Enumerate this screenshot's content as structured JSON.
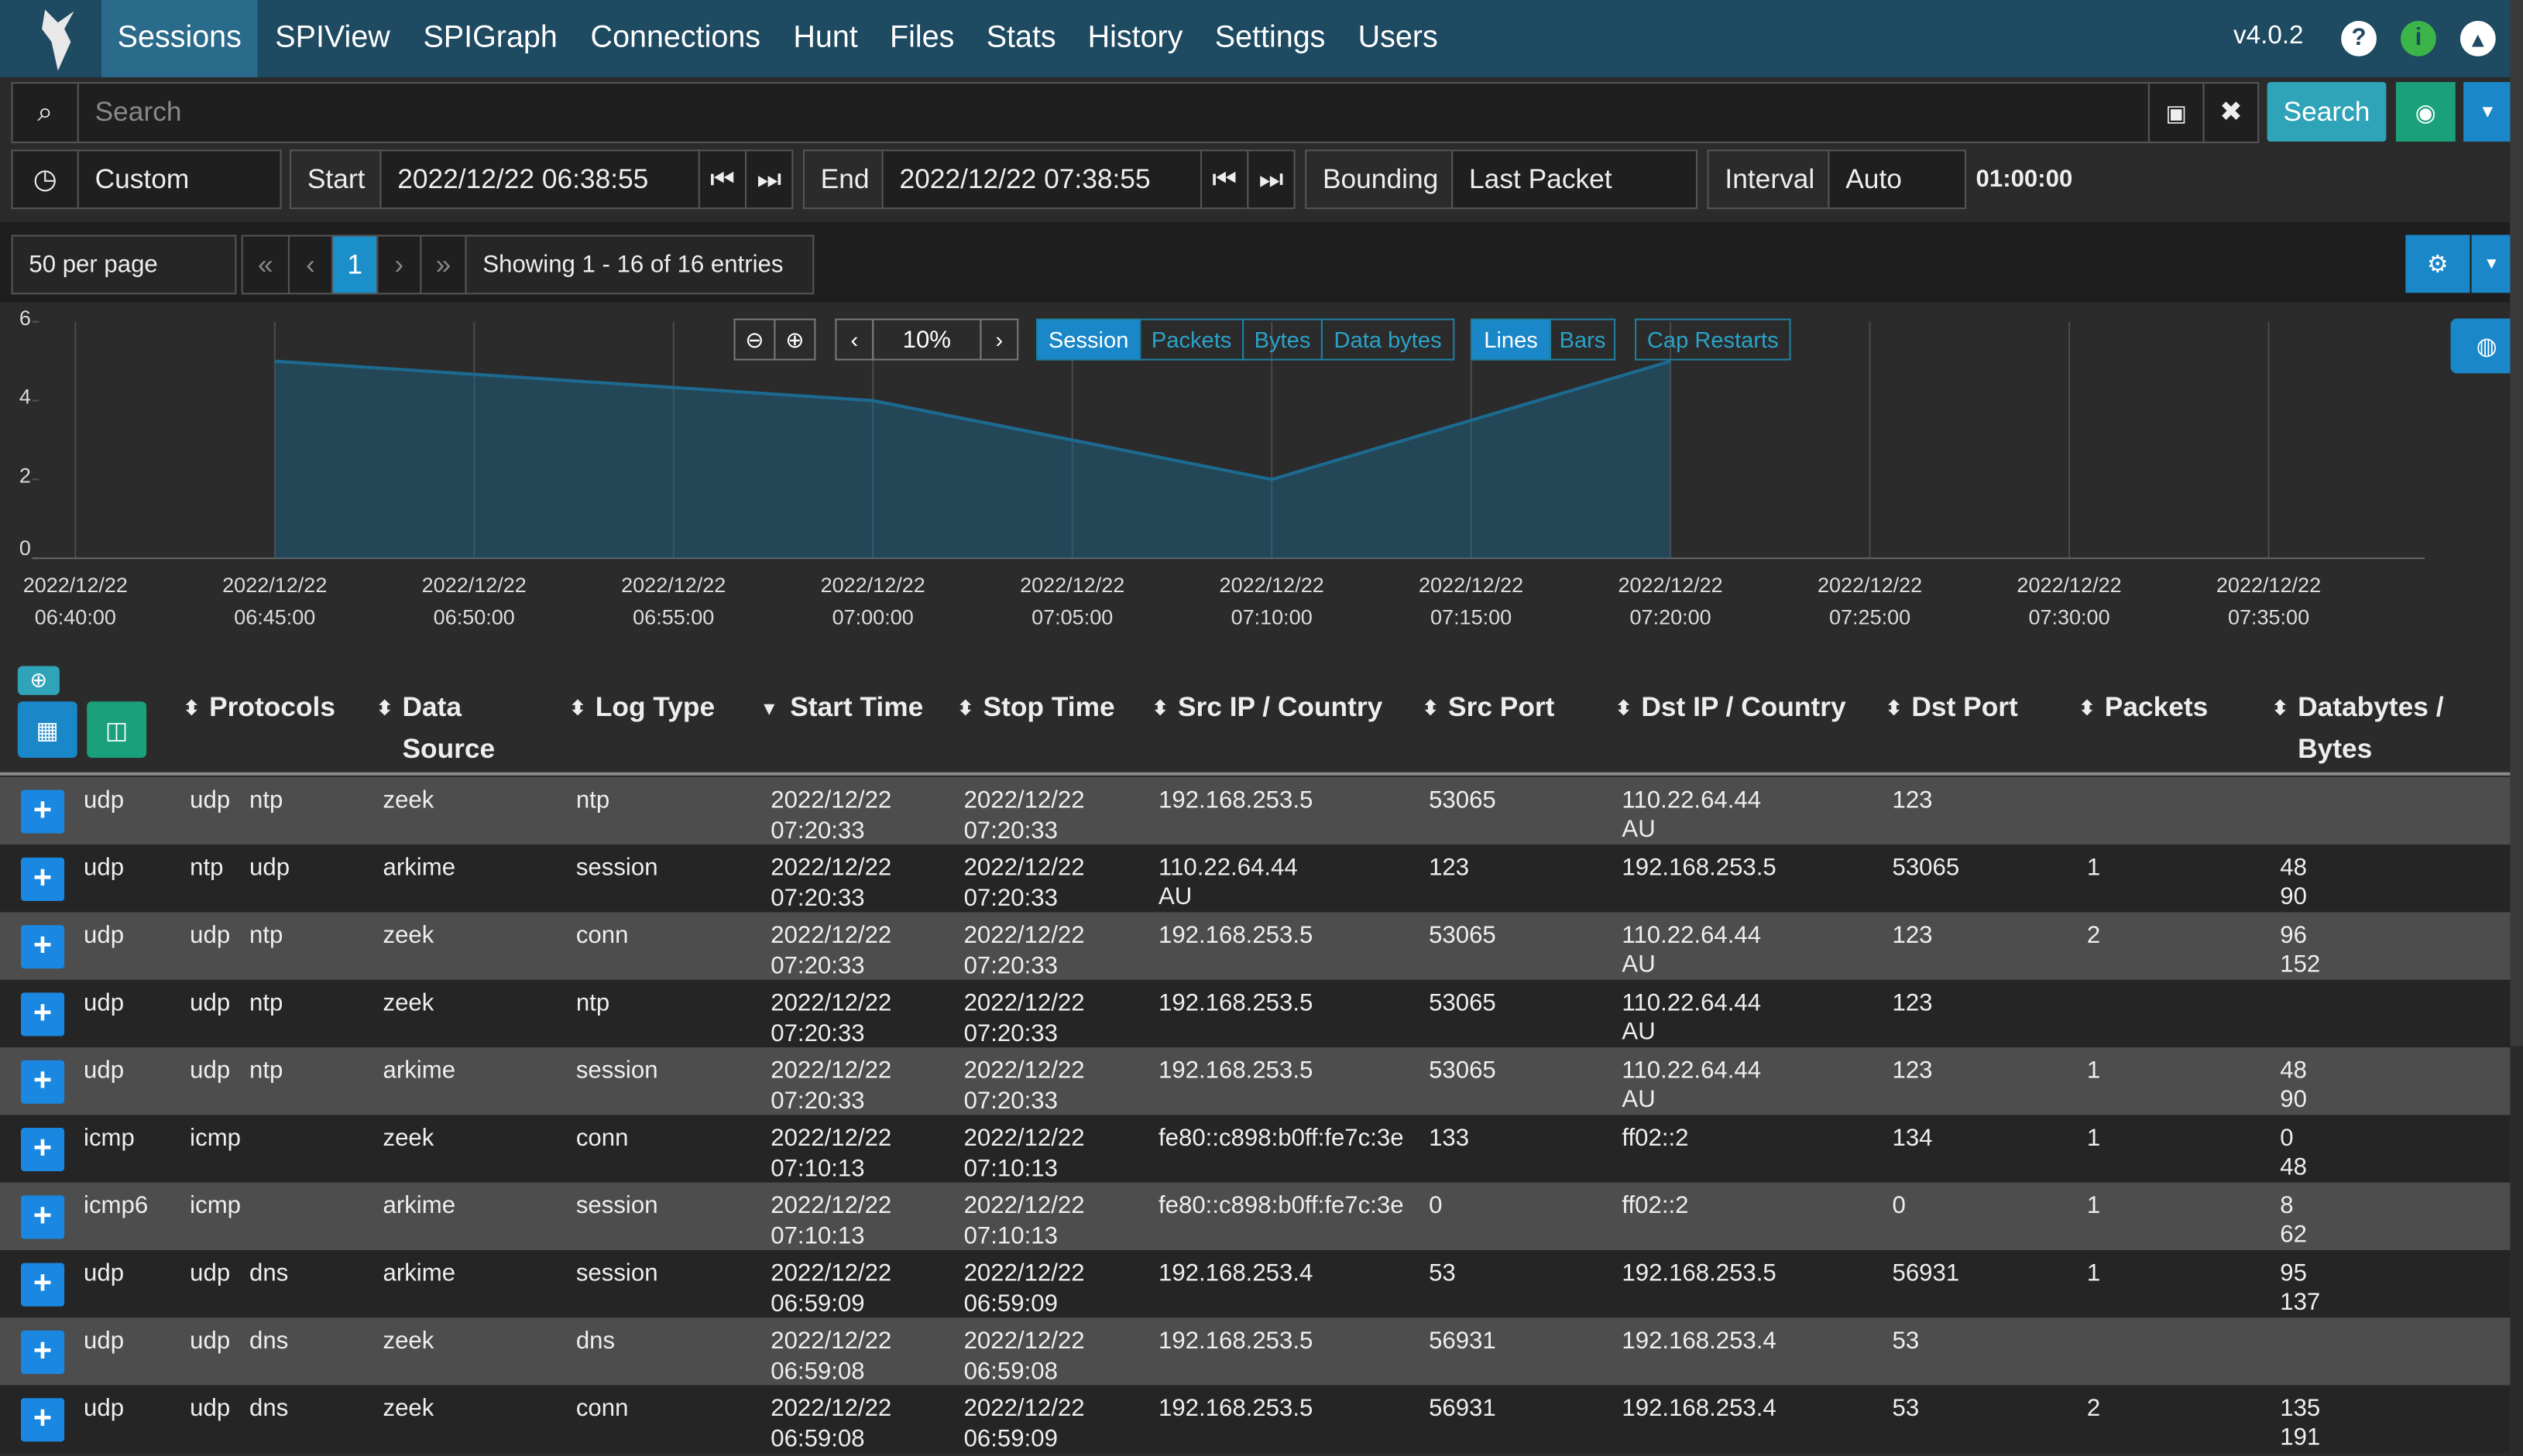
{
  "nav": {
    "items": [
      "Sessions",
      "SPIView",
      "SPIGraph",
      "Connections",
      "Hunt",
      "Files",
      "Stats",
      "History",
      "Settings",
      "Users"
    ],
    "version": "v4.0.2"
  },
  "search": {
    "placeholder": "Search",
    "button": "Search"
  },
  "time": {
    "range": "Custom",
    "start_label": "Start",
    "start": "2022/12/22 06:38:55",
    "end_label": "End",
    "end": "2022/12/22 07:38:55",
    "bounding_label": "Bounding",
    "bounding": "Last Packet",
    "interval_label": "Interval",
    "interval": "Auto",
    "duration": "01:00:00"
  },
  "paging": {
    "per_page": "50 per page",
    "first": "«",
    "prev": "‹",
    "page": "1",
    "next": "›",
    "last": "»",
    "info": "Showing 1 - 16 of 16 entries"
  },
  "graph_controls": {
    "zoom": "10%",
    "modes": [
      "Session",
      "Packets",
      "Bytes",
      "Data bytes"
    ],
    "styles": [
      "Lines",
      "Bars"
    ],
    "cap": "Cap Restarts"
  },
  "chart_data": {
    "type": "area",
    "x": [
      "2022/12/22 06:45:00",
      "2022/12/22 07:00:00",
      "2022/12/22 07:10:00",
      "2022/12/22 07:20:00"
    ],
    "values": [
      5,
      4,
      2,
      5
    ],
    "color": "#1d6a90",
    "xlim": [
      "2022/12/22 06:38:55",
      "2022/12/22 07:38:55"
    ],
    "xticks": [
      "2022/12/22 06:40:00",
      "2022/12/22 06:45:00",
      "2022/12/22 06:50:00",
      "2022/12/22 06:55:00",
      "2022/12/22 07:00:00",
      "2022/12/22 07:05:00",
      "2022/12/22 07:10:00",
      "2022/12/22 07:15:00",
      "2022/12/22 07:20:00",
      "2022/12/22 07:25:00",
      "2022/12/22 07:30:00",
      "2022/12/22 07:35:00"
    ],
    "ylim": [
      0,
      6
    ],
    "yticks": [
      0,
      2,
      4,
      6
    ],
    "grid": true
  },
  "table": {
    "columns": [
      "Protocols",
      "Data Source",
      "Log Type",
      "Start Time",
      "Stop Time",
      "Src IP / Country",
      "Src Port",
      "Dst IP / Country",
      "Dst Port",
      "Packets",
      "Databytes / Bytes"
    ],
    "rows": [
      {
        "proto": "udp",
        "protocols": [
          "udp",
          "ntp"
        ],
        "source": "zeek",
        "log_type": "ntp",
        "start": "2022/12/22 07:20:33",
        "stop": "2022/12/22 07:20:33",
        "src_ip": "192.168.253.5",
        "src_port": 53065,
        "dst_ip": "110.22.64.44",
        "dst_country": "AU",
        "dst_port": 123
      },
      {
        "proto": "udp",
        "protocols": [
          "ntp",
          "udp"
        ],
        "source": "arkime",
        "log_type": "session",
        "start": "2022/12/22 07:20:33",
        "stop": "2022/12/22 07:20:33",
        "src_ip": "110.22.64.44",
        "src_country": "AU",
        "src_port": 123,
        "dst_ip": "192.168.253.5",
        "dst_port": 53065,
        "packets": 1,
        "databytes": 48,
        "bytes": 90
      },
      {
        "proto": "udp",
        "protocols": [
          "udp",
          "ntp"
        ],
        "source": "zeek",
        "log_type": "conn",
        "start": "2022/12/22 07:20:33",
        "stop": "2022/12/22 07:20:33",
        "src_ip": "192.168.253.5",
        "src_port": 53065,
        "dst_ip": "110.22.64.44",
        "dst_country": "AU",
        "dst_port": 123,
        "packets": 2,
        "databytes": 96,
        "bytes": 152
      },
      {
        "proto": "udp",
        "protocols": [
          "udp",
          "ntp"
        ],
        "source": "zeek",
        "log_type": "ntp",
        "start": "2022/12/22 07:20:33",
        "stop": "2022/12/22 07:20:33",
        "src_ip": "192.168.253.5",
        "src_port": 53065,
        "dst_ip": "110.22.64.44",
        "dst_country": "AU",
        "dst_port": 123
      },
      {
        "proto": "udp",
        "protocols": [
          "udp",
          "ntp"
        ],
        "source": "arkime",
        "log_type": "session",
        "start": "2022/12/22 07:20:33",
        "stop": "2022/12/22 07:20:33",
        "src_ip": "192.168.253.5",
        "src_port": 53065,
        "dst_ip": "110.22.64.44",
        "dst_country": "AU",
        "dst_port": 123,
        "packets": 1,
        "databytes": 48,
        "bytes": 90
      },
      {
        "proto": "icmp",
        "protocols": [
          "icmp"
        ],
        "source": "zeek",
        "log_type": "conn",
        "start": "2022/12/22 07:10:13",
        "stop": "2022/12/22 07:10:13",
        "src_ip": "fe80::c898:b0ff:fe7c:3e",
        "src_port": 133,
        "dst_ip": "ff02::2",
        "dst_port": 134,
        "packets": 1,
        "databytes": 0,
        "bytes": 48
      },
      {
        "proto": "icmp6",
        "protocols": [
          "icmp"
        ],
        "source": "arkime",
        "log_type": "session",
        "start": "2022/12/22 07:10:13",
        "stop": "2022/12/22 07:10:13",
        "src_ip": "fe80::c898:b0ff:fe7c:3e",
        "src_port": 0,
        "dst_ip": "ff02::2",
        "dst_port": 0,
        "packets": 1,
        "databytes": 8,
        "bytes": 62
      },
      {
        "proto": "udp",
        "protocols": [
          "udp",
          "dns"
        ],
        "source": "arkime",
        "log_type": "session",
        "start": "2022/12/22 06:59:09",
        "stop": "2022/12/22 06:59:09",
        "src_ip": "192.168.253.4",
        "src_port": 53,
        "dst_ip": "192.168.253.5",
        "dst_port": 56931,
        "packets": 1,
        "databytes": 95,
        "bytes": 137
      },
      {
        "proto": "udp",
        "protocols": [
          "udp",
          "dns"
        ],
        "source": "zeek",
        "log_type": "dns",
        "start": "2022/12/22 06:59:08",
        "stop": "2022/12/22 06:59:08",
        "src_ip": "192.168.253.5",
        "src_port": 56931,
        "dst_ip": "192.168.253.4",
        "dst_port": 53
      },
      {
        "proto": "udp",
        "protocols": [
          "udp",
          "dns"
        ],
        "source": "zeek",
        "log_type": "conn",
        "start": "2022/12/22 06:59:08",
        "stop": "2022/12/22 06:59:09",
        "src_ip": "192.168.253.5",
        "src_port": 56931,
        "dst_ip": "192.168.253.4",
        "dst_port": 53,
        "packets": 2,
        "databytes": 135,
        "bytes": 191
      }
    ]
  }
}
